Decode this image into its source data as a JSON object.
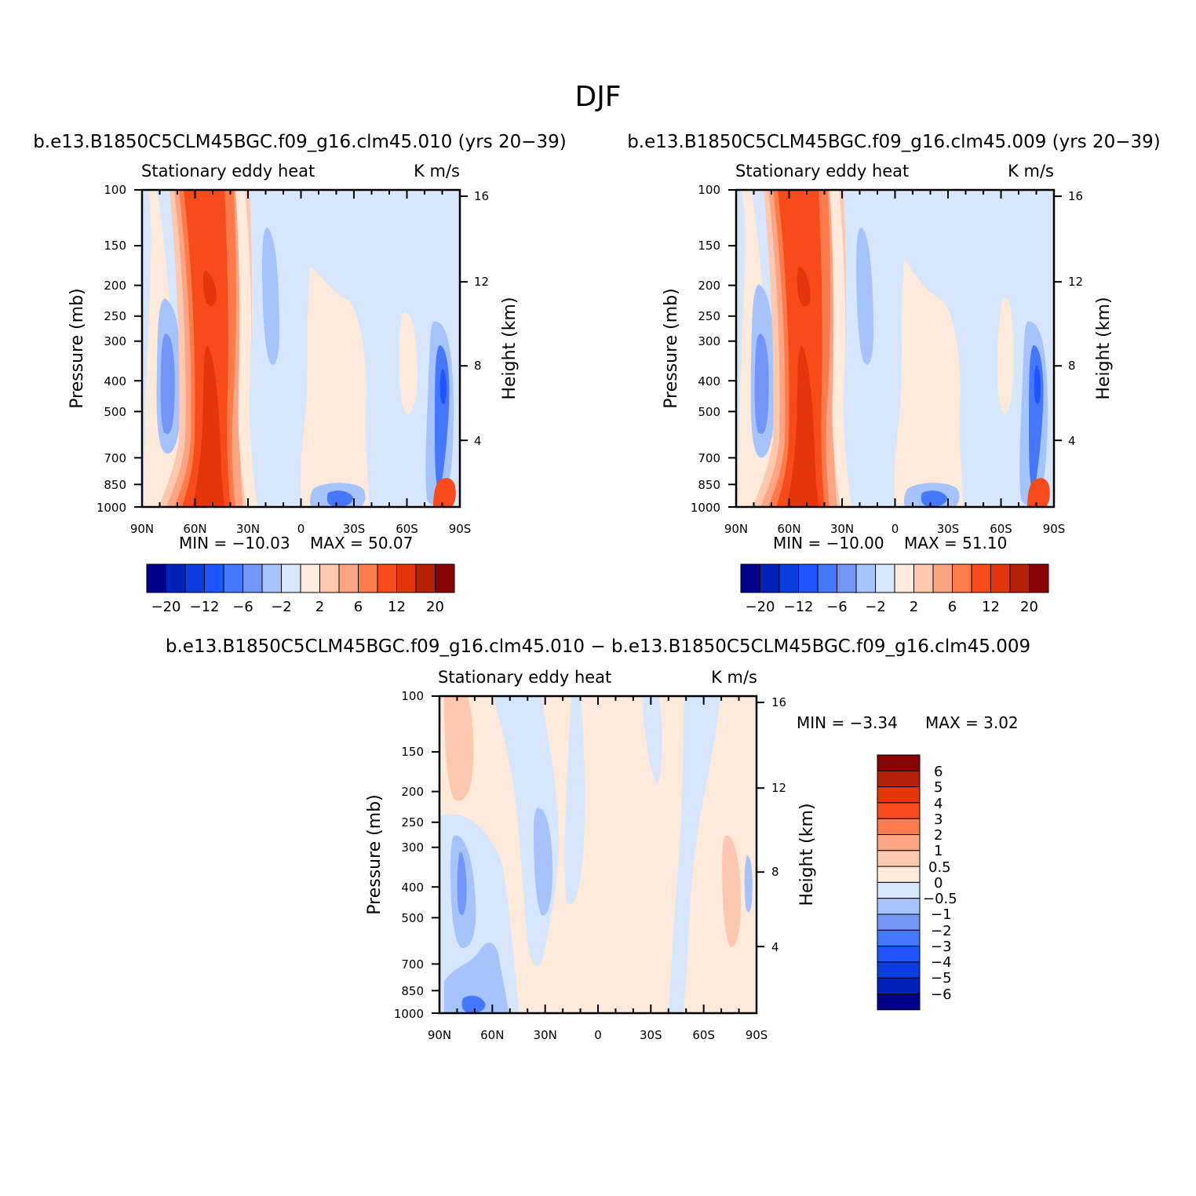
{
  "figure": {
    "title": "DJF"
  },
  "chart_data": [
    {
      "type": "heatmap",
      "title": "b.e13.B1850C5CLM45BGC.f09_g16.clm45.010 (yrs 20−39)",
      "left_label": "Stationary eddy heat",
      "right_label": "K m/s",
      "ylabel": "Pressure (mb)",
      "ylabel_right": "Height (km)",
      "x_ticks": [
        "90N",
        "60N",
        "30N",
        "0",
        "30S",
        "60S",
        "90S"
      ],
      "y_ticks": [
        "100",
        "150",
        "200",
        "250",
        "300",
        "400",
        "500",
        "700",
        "850",
        "1000"
      ],
      "y_ticks_right": [
        "16",
        "12",
        "8",
        "4"
      ],
      "min_text": "MIN = −10.03",
      "max_text": "MAX = 50.07",
      "min": -10.03,
      "max": 50.07,
      "colorbar_labels": [
        "−20",
        "−12",
        "−6",
        "−2",
        "2",
        "6",
        "12",
        "20"
      ],
      "colors": [
        "#00008a",
        "#0022b8",
        "#0a3ee0",
        "#1f55ff",
        "#4577ff",
        "#7196f7",
        "#a6c3fb",
        "#d6e6fd",
        "#feeada",
        "#fcc9b0",
        "#fca584",
        "#fd7a4b",
        "#f74b1c",
        "#e3360d",
        "#b52208",
        "#860402"
      ]
    },
    {
      "type": "heatmap",
      "title": "b.e13.B1850C5CLM45BGC.f09_g16.clm45.009 (yrs 20−39)",
      "left_label": "Stationary eddy heat",
      "right_label": "K m/s",
      "ylabel": "Pressure (mb)",
      "ylabel_right": "Height (km)",
      "x_ticks": [
        "90N",
        "60N",
        "30N",
        "0",
        "30S",
        "60S",
        "90S"
      ],
      "y_ticks": [
        "100",
        "150",
        "200",
        "250",
        "300",
        "400",
        "500",
        "700",
        "850",
        "1000"
      ],
      "y_ticks_right": [
        "16",
        "12",
        "8",
        "4"
      ],
      "min_text": "MIN = −10.00",
      "max_text": "MAX = 51.10",
      "min": -10.0,
      "max": 51.1,
      "colorbar_labels": [
        "−20",
        "−12",
        "−6",
        "−2",
        "2",
        "6",
        "12",
        "20"
      ],
      "colors": [
        "#00008a",
        "#0022b8",
        "#0a3ee0",
        "#1f55ff",
        "#4577ff",
        "#7196f7",
        "#a6c3fb",
        "#d6e6fd",
        "#feeada",
        "#fcc9b0",
        "#fca584",
        "#fd7a4b",
        "#f74b1c",
        "#e3360d",
        "#b52208",
        "#860402"
      ]
    },
    {
      "type": "heatmap",
      "title": "b.e13.B1850C5CLM45BGC.f09_g16.clm45.010 − b.e13.B1850C5CLM45BGC.f09_g16.clm45.009",
      "left_label": "Stationary eddy heat",
      "right_label": "K m/s",
      "ylabel": "Pressure (mb)",
      "ylabel_right": "Height (km)",
      "x_ticks": [
        "90N",
        "60N",
        "30N",
        "0",
        "30S",
        "60S",
        "90S"
      ],
      "y_ticks": [
        "100",
        "150",
        "200",
        "250",
        "300",
        "400",
        "500",
        "700",
        "850",
        "1000"
      ],
      "y_ticks_right": [
        "16",
        "12",
        "8",
        "4"
      ],
      "min_text": "MIN = −3.34",
      "max_text": "MAX = 3.02",
      "min": -3.34,
      "max": 3.02,
      "colorbar_labels": [
        "6",
        "5",
        "4",
        "3",
        "2",
        "1",
        "0.5",
        "0",
        "−0.5",
        "−1",
        "−2",
        "−3",
        "−4",
        "−5",
        "−6"
      ],
      "colors": [
        "#860402",
        "#b52208",
        "#e3360d",
        "#f74b1c",
        "#fd7a4b",
        "#fca584",
        "#fcc9b0",
        "#feeada",
        "#d6e6fd",
        "#a6c3fb",
        "#7196f7",
        "#4577ff",
        "#1f55ff",
        "#0a3ee0",
        "#0022b8",
        "#00008a"
      ]
    }
  ]
}
